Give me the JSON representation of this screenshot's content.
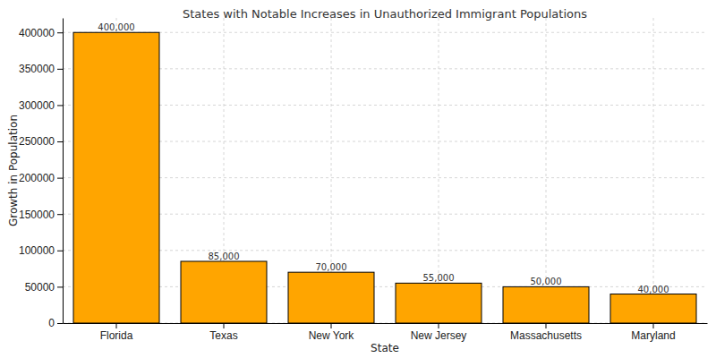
{
  "chart_data": {
    "type": "bar",
    "title": "States with Notable Increases in Unauthorized Immigrant Populations",
    "x_label": "State",
    "y_label": "Growth in Population",
    "categories": [
      "Florida",
      "Texas",
      "New York",
      "New Jersey",
      "Massachusetts",
      "Maryland"
    ],
    "values": [
      400000,
      85000,
      70000,
      55000,
      50000,
      40000
    ],
    "value_labels": [
      "400,000",
      "85,000",
      "70,000",
      "55,000",
      "50,000",
      "40,000"
    ],
    "data_labels": true,
    "color": "#ffa500",
    "ylim": [
      0,
      420000
    ],
    "yticks": [
      0,
      50000,
      100000,
      150000,
      200000,
      250000,
      300000,
      350000,
      400000
    ],
    "grid": true
  }
}
